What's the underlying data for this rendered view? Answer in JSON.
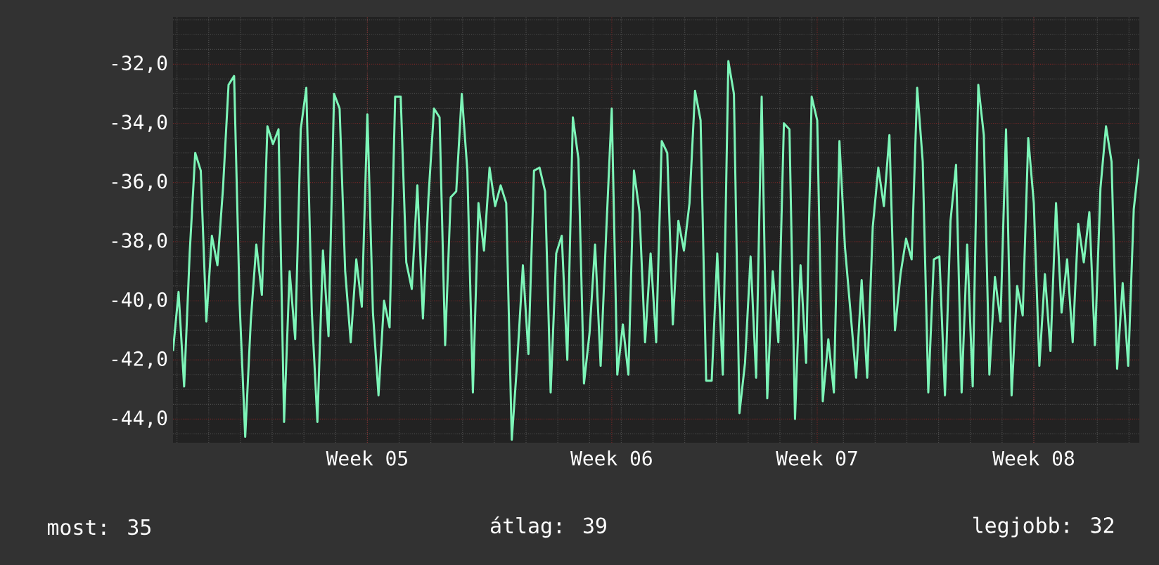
{
  "chart_data": {
    "type": "line",
    "color": "#7df5b8",
    "grid": true,
    "categories": [
      null,
      null,
      null,
      null,
      null,
      null,
      null,
      null,
      null,
      null,
      null,
      null,
      null,
      null,
      null,
      null,
      null,
      null,
      null,
      null,
      null,
      null,
      null,
      null,
      null,
      null,
      null,
      null,
      null,
      null,
      null,
      null,
      null,
      null,
      null,
      "Week 05",
      null,
      null,
      null,
      null,
      null,
      null,
      null,
      null,
      null,
      null,
      null,
      null,
      null,
      null,
      null,
      null,
      null,
      null,
      null,
      null,
      null,
      null,
      null,
      null,
      null,
      null,
      null,
      null,
      null,
      null,
      null,
      null,
      null,
      null,
      null,
      null,
      null,
      null,
      null,
      null,
      null,
      null,
      null,
      "Week 06",
      null,
      null,
      null,
      null,
      null,
      null,
      null,
      null,
      null,
      null,
      null,
      null,
      null,
      null,
      null,
      null,
      null,
      null,
      null,
      null,
      null,
      null,
      null,
      null,
      null,
      null,
      null,
      null,
      null,
      null,
      null,
      null,
      null,
      null,
      null,
      null,
      "Week 07",
      null,
      null,
      null,
      null,
      null,
      null,
      null,
      null,
      null,
      null,
      null,
      null,
      null,
      null,
      null,
      null,
      null,
      null,
      null,
      null,
      null,
      null,
      null,
      null,
      null,
      null,
      null,
      null,
      null,
      null,
      null,
      null,
      null,
      null,
      null,
      null,
      null,
      null,
      "Week 08",
      null,
      null,
      null,
      null,
      null,
      null,
      null,
      null,
      null,
      null,
      null,
      null,
      null,
      null,
      null,
      null,
      null,
      null,
      null
    ],
    "values": [
      -41.7,
      -39.7,
      -42.9,
      -38.4,
      -35.0,
      -35.6,
      -40.7,
      -37.8,
      -38.8,
      -36.2,
      -32.7,
      -32.4,
      -40.1,
      -44.6,
      -40.7,
      -38.1,
      -39.8,
      -34.1,
      -34.7,
      -34.2,
      -44.1,
      -39.0,
      -41.3,
      -34.2,
      -32.8,
      -40.4,
      -44.1,
      -38.3,
      -41.2,
      -33.0,
      -33.5,
      -39.0,
      -41.4,
      -38.6,
      -40.2,
      -33.7,
      -40.4,
      -43.2,
      -40.0,
      -40.9,
      -33.1,
      -33.1,
      -38.7,
      -39.6,
      -36.1,
      -40.6,
      -36.5,
      -33.5,
      -33.8,
      -41.5,
      -36.5,
      -36.3,
      -33.0,
      -35.6,
      -43.1,
      -36.7,
      -38.3,
      -35.5,
      -36.8,
      -36.1,
      -36.7,
      -44.7,
      -42.0,
      -38.8,
      -41.8,
      -35.6,
      -35.5,
      -36.3,
      -43.1,
      -38.4,
      -37.8,
      -42.0,
      -33.8,
      -35.2,
      -42.8,
      -41.1,
      -38.1,
      -42.2,
      -37.7,
      -33.5,
      -42.5,
      -40.8,
      -42.5,
      -35.6,
      -37.0,
      -41.4,
      -38.4,
      -41.4,
      -34.6,
      -35.0,
      -40.8,
      -37.3,
      -38.3,
      -36.7,
      -32.9,
      -33.9,
      -42.7,
      -42.7,
      -38.4,
      -42.5,
      -31.9,
      -33.0,
      -43.8,
      -42.1,
      -38.5,
      -42.6,
      -33.1,
      -43.3,
      -39.0,
      -41.4,
      -34.0,
      -34.2,
      -44.0,
      -38.8,
      -42.1,
      -33.1,
      -33.9,
      -43.4,
      -41.3,
      -43.1,
      -34.6,
      -38.2,
      -40.4,
      -42.6,
      -39.3,
      -42.6,
      -37.5,
      -35.5,
      -36.8,
      -34.4,
      -41.0,
      -39.1,
      -37.9,
      -38.6,
      -32.8,
      -35.3,
      -43.1,
      -38.6,
      -38.5,
      -43.2,
      -37.3,
      -35.4,
      -43.1,
      -38.1,
      -42.9,
      -32.7,
      -34.4,
      -42.5,
      -39.2,
      -40.7,
      -34.2,
      -43.2,
      -39.5,
      -40.5,
      -34.5,
      -36.7,
      -42.2,
      -39.1,
      -41.7,
      -36.7,
      -40.4,
      -38.6,
      -41.4,
      -37.4,
      -38.7,
      -37.0,
      -41.5,
      -36.2,
      -34.1,
      -35.3,
      -42.3,
      -39.4,
      -42.2,
      -36.9,
      -35.2
    ],
    "ylim": [
      -44.8,
      -30.4
    ],
    "yticks": [
      {
        "value": -44,
        "label": "-44,0"
      },
      {
        "value": -42,
        "label": "-42,0"
      },
      {
        "value": -40,
        "label": "-40,0"
      },
      {
        "value": -38,
        "label": "-38,0"
      },
      {
        "value": -36,
        "label": "-36,0"
      },
      {
        "value": -34,
        "label": "-34,0"
      },
      {
        "value": -32,
        "label": "-32,0"
      }
    ],
    "annotations": [
      "most: 35",
      "átlag: 39",
      "legjobb: 32"
    ]
  }
}
